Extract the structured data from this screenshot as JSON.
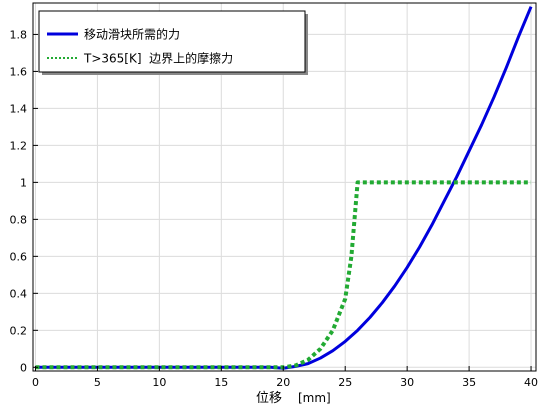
{
  "chart_data": {
    "type": "line",
    "xlabel": "位移",
    "xlabel_unit": "[mm]",
    "ylabel": "",
    "xlim": [
      -0.2,
      40.4
    ],
    "ylim": [
      -0.02,
      1.97
    ],
    "x_ticks": [
      0,
      5,
      10,
      15,
      20,
      25,
      30,
      35,
      40
    ],
    "y_ticks": [
      0,
      0.2,
      0.4,
      0.6,
      0.8,
      1,
      1.2,
      1.4,
      1.6,
      1.8
    ],
    "grid": true,
    "legend_position": "top-left",
    "series": [
      {
        "name": "移动滑块所需的力",
        "color": "#0000dd",
        "style": "solid",
        "x": [
          0,
          5,
          10,
          15,
          19,
          20,
          21,
          22,
          23,
          24,
          25,
          26,
          27,
          28,
          29,
          30,
          31,
          32,
          33,
          34,
          35,
          36,
          37,
          38,
          39,
          40
        ],
        "y": [
          0,
          0,
          0,
          0,
          0,
          -0.005,
          0.005,
          0.02,
          0.05,
          0.09,
          0.14,
          0.2,
          0.27,
          0.35,
          0.44,
          0.54,
          0.65,
          0.77,
          0.9,
          1.03,
          1.17,
          1.31,
          1.46,
          1.62,
          1.79,
          1.95
        ]
      },
      {
        "name": "T>365[K]  边界上的摩擦力",
        "color": "#22aa33",
        "style": "dotted",
        "x": [
          0,
          5,
          10,
          15,
          19,
          20,
          21,
          22,
          23,
          24,
          25,
          25.5,
          26,
          27,
          30,
          35,
          40
        ],
        "y": [
          0,
          0,
          0,
          0,
          0,
          0,
          0.01,
          0.04,
          0.1,
          0.2,
          0.37,
          0.6,
          1,
          1,
          1,
          1,
          1
        ]
      }
    ]
  }
}
